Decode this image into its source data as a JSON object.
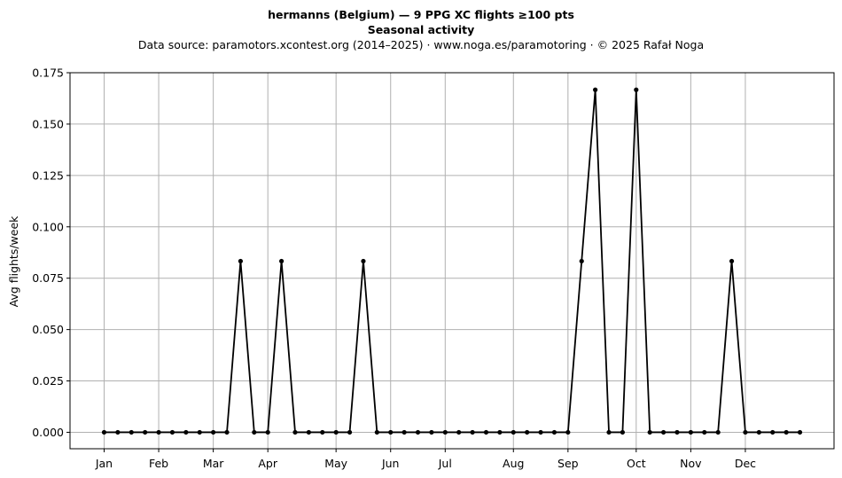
{
  "chart_data": {
    "type": "line",
    "title": "hermanns (Belgium)  —  9 PPG XC flights ≥100 pts",
    "title2": "Seasonal activity",
    "subtitle": "Data source: paramotors.xcontest.org (2014–2025)  ·  www.noga.es/paramotoring  ·  © 2025 Rafał Noga",
    "xlabel": "",
    "ylabel": "Avg flights/week",
    "x_unit": "week of year",
    "xlim": [
      -1.5,
      54.5
    ],
    "ylim": [
      -0.008,
      0.175
    ],
    "yticks": [
      0.0,
      0.025,
      0.05,
      0.075,
      0.1,
      0.125,
      0.15,
      0.175
    ],
    "ytick_labels": [
      "0.000",
      "0.025",
      "0.050",
      "0.075",
      "0.100",
      "0.125",
      "0.150",
      "0.175"
    ],
    "xticks": [
      1,
      5,
      9,
      13,
      18,
      22,
      26,
      31,
      35,
      40,
      44,
      48
    ],
    "xtick_labels": [
      "Jan",
      "Feb",
      "Mar",
      "Apr",
      "May",
      "Jun",
      "Jul",
      "Aug",
      "Sep",
      "Oct",
      "Nov",
      "Dec"
    ],
    "grid": true,
    "line_color": "#000000",
    "grid_color": "#b0b0b0",
    "series": [
      {
        "x": [
          1,
          2,
          3,
          4,
          5,
          6,
          7,
          8,
          9,
          10,
          11,
          12,
          13,
          14,
          15,
          16,
          17,
          18,
          19,
          20,
          21,
          22,
          23,
          24,
          25,
          26,
          27,
          28,
          29,
          30,
          31,
          32,
          33,
          34,
          35,
          36,
          37,
          38,
          39,
          40,
          41,
          42,
          43,
          44,
          45,
          46,
          47,
          48,
          49,
          50,
          51,
          52
        ],
        "values": [
          0,
          0,
          0,
          0,
          0,
          0,
          0,
          0,
          0,
          0,
          0.0833,
          0,
          0,
          0.0833,
          0,
          0,
          0,
          0,
          0,
          0.0833,
          0,
          0,
          0,
          0,
          0,
          0,
          0,
          0,
          0,
          0,
          0,
          0,
          0,
          0,
          0,
          0.0833,
          0.1667,
          0,
          0,
          0.1667,
          0,
          0,
          0,
          0,
          0,
          0,
          0.0833,
          0,
          0,
          0,
          0,
          0
        ]
      }
    ]
  }
}
